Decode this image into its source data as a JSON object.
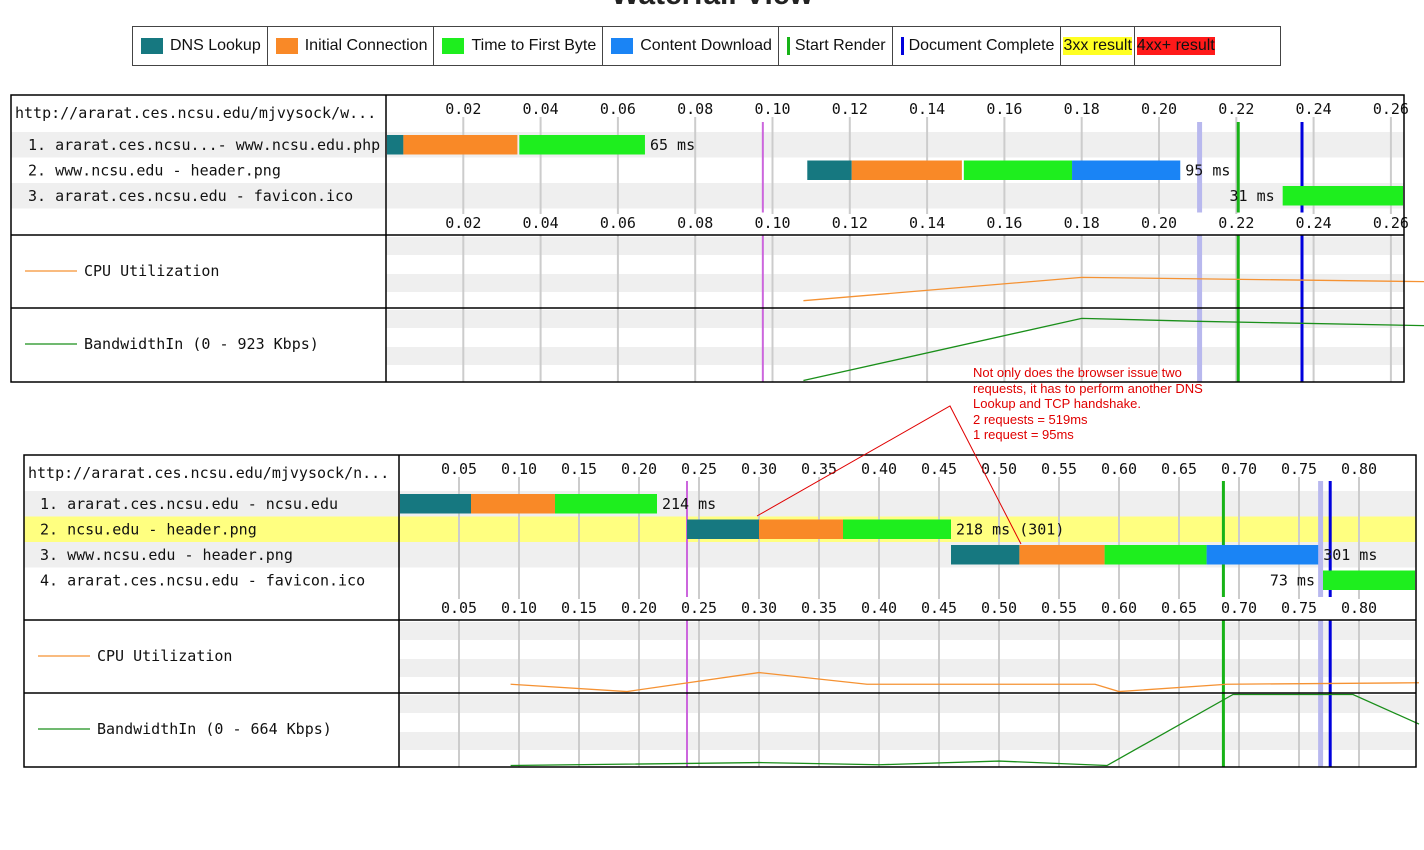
{
  "title": "Waterfall View",
  "legend": [
    {
      "label": "DNS Lookup",
      "color": "#167880",
      "kind": "swatch"
    },
    {
      "label": "Initial Connection",
      "color": "#f98927",
      "kind": "swatch"
    },
    {
      "label": "Time to First Byte",
      "color": "#1eee1e",
      "kind": "swatch"
    },
    {
      "label": "Content Download",
      "color": "#1a84f5",
      "kind": "swatch"
    },
    {
      "label": "Start Render",
      "color": "#17b317",
      "kind": "line"
    },
    {
      "label": "Document Complete",
      "color": "#0000dd",
      "kind": "line"
    },
    {
      "label": "3xx result",
      "color": "#ffff22",
      "kind": "box"
    },
    {
      "label": "4xx+ result",
      "color": "#ff1a1a",
      "kind": "box"
    }
  ],
  "colors": {
    "dns": "#167880",
    "connect": "#f98927",
    "ttfb": "#1eee1e",
    "download": "#1a84f5",
    "start_render": "#17b317",
    "doc_complete": "#0000dd",
    "first_paint": "#cc66dd",
    "dom_content": "#b8b8ee",
    "cpu": "#f59233",
    "bandwidth": "#1a8f1a",
    "highlight": "#ffff80",
    "stripe": "#efefef"
  },
  "waterfall1": {
    "url": "http://ararat.ces.ncsu.edu/mjvysock/w...",
    "ticks": [
      "0.02",
      "0.04",
      "0.06",
      "0.08",
      "0.10",
      "0.12",
      "0.14",
      "0.16",
      "0.18",
      "0.20",
      "0.22",
      "0.24",
      "0.26"
    ],
    "tick_values": [
      0.02,
      0.04,
      0.06,
      0.08,
      0.1,
      0.12,
      0.14,
      0.16,
      0.18,
      0.2,
      0.22,
      0.24,
      0.26
    ],
    "rows": [
      {
        "label": "1. ararat.ces.ncsu...- www.ncsu.edu.php",
        "dns": [
          0,
          0.0045
        ],
        "connect": [
          0.0045,
          0.034
        ],
        "ttfb": [
          0.0345,
          0.067
        ],
        "download": null,
        "time": "65 ms",
        "highlight": false
      },
      {
        "label": "2. www.ncsu.edu - header.png",
        "dns": [
          0.109,
          0.1205
        ],
        "connect": [
          0.1205,
          0.149
        ],
        "ttfb": [
          0.1495,
          0.1775
        ],
        "download": [
          0.1775,
          0.2055
        ],
        "time": "95 ms",
        "highlight": false
      },
      {
        "label": "3. ararat.ces.ncsu.edu - favicon.ico",
        "dns": null,
        "connect": null,
        "ttfb": [
          0.232,
          0.27
        ],
        "download": null,
        "time": "31 ms",
        "highlight": false
      }
    ],
    "markers": {
      "first_paint": 0.0975,
      "dom_content": 0.2105,
      "start_render": 0.2205,
      "doc_complete": 0.237
    },
    "cpu_label": "CPU Utilization",
    "bw_label": "BandwidthIn (0 - 923 Kbps)",
    "cpu_points": [
      [
        0.108,
        0.1
      ],
      [
        0.18,
        0.42
      ],
      [
        0.27,
        0.36
      ]
    ],
    "bw_points": [
      [
        0.108,
        0.02
      ],
      [
        0.18,
        0.86
      ],
      [
        0.21,
        0.82
      ],
      [
        0.27,
        0.76
      ]
    ]
  },
  "waterfall2": {
    "url": "http://ararat.ces.ncsu.edu/mjvysock/n...",
    "ticks": [
      "0.05",
      "0.10",
      "0.15",
      "0.20",
      "0.25",
      "0.30",
      "0.35",
      "0.40",
      "0.45",
      "0.50",
      "0.55",
      "0.60",
      "0.65",
      "0.70",
      "0.75",
      "0.80"
    ],
    "tick_values": [
      0.05,
      0.1,
      0.15,
      0.2,
      0.25,
      0.3,
      0.35,
      0.4,
      0.45,
      0.5,
      0.55,
      0.6,
      0.65,
      0.7,
      0.75,
      0.8
    ],
    "rows": [
      {
        "label": "1. ararat.ces.ncsu.edu - ncsu.edu",
        "dns": [
          0,
          0.06
        ],
        "connect": [
          0.06,
          0.13
        ],
        "ttfb": [
          0.13,
          0.215
        ],
        "download": null,
        "time": "214 ms",
        "highlight": false
      },
      {
        "label": "2. ncsu.edu - header.png",
        "dns": [
          0.24,
          0.3
        ],
        "connect": [
          0.3,
          0.37
        ],
        "ttfb": [
          0.37,
          0.46
        ],
        "download": null,
        "time": "218 ms (301)",
        "highlight": true
      },
      {
        "label": "3. www.ncsu.edu - header.png",
        "dns": [
          0.46,
          0.517
        ],
        "connect": [
          0.517,
          0.588
        ],
        "ttfb": [
          0.588,
          0.673
        ],
        "download": [
          0.673,
          0.766
        ],
        "time": "301 ms",
        "highlight": false
      },
      {
        "label": "4. ararat.ces.ncsu.edu - favicon.ico",
        "dns": null,
        "connect": null,
        "ttfb": [
          0.77,
          0.85
        ],
        "download": null,
        "time": "73 ms",
        "highlight": false
      }
    ],
    "markers": {
      "first_paint": 0.24,
      "dom_content": 0.768,
      "start_render": 0.687,
      "doc_complete": 0.776
    },
    "cpu_label": "CPU Utilization",
    "bw_label": "BandwidthIn (0 - 664 Kbps)",
    "cpu_points": [
      [
        0.093,
        0.12
      ],
      [
        0.19,
        0.02
      ],
      [
        0.3,
        0.28
      ],
      [
        0.39,
        0.12
      ],
      [
        0.58,
        0.12
      ],
      [
        0.6,
        0.02
      ],
      [
        0.69,
        0.12
      ],
      [
        0.85,
        0.14
      ]
    ],
    "bw_points": [
      [
        0.093,
        0.02
      ],
      [
        0.3,
        0.06
      ],
      [
        0.4,
        0.03
      ],
      [
        0.5,
        0.08
      ],
      [
        0.59,
        0.02
      ],
      [
        0.695,
        0.98
      ],
      [
        0.795,
        0.98
      ],
      [
        0.85,
        0.58
      ]
    ]
  },
  "annotation": {
    "lines": [
      "Not only does the browser issue two",
      "requests, it has to perform another DNS",
      "Lookup and TCP handshake.",
      "2 requests = 519ms",
      "1 request = 95ms"
    ]
  }
}
